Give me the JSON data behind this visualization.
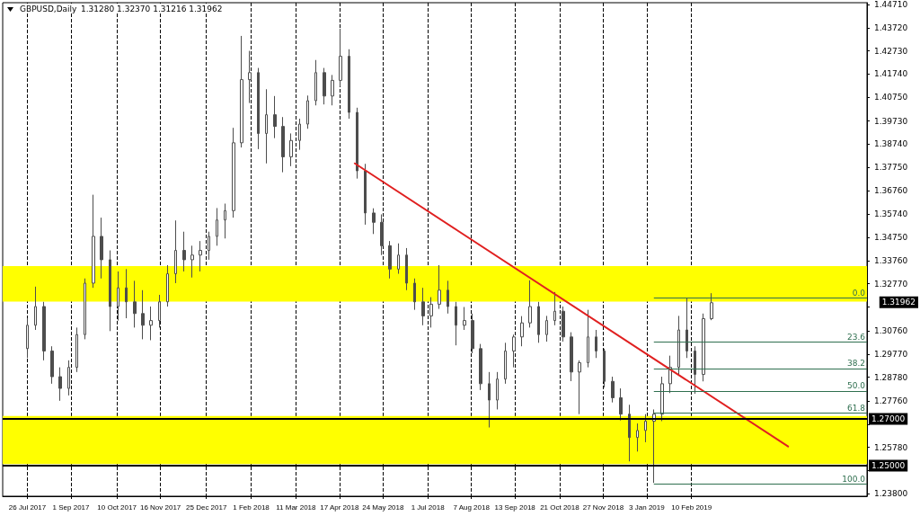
{
  "chart_data": {
    "type": "candlestick",
    "title": "GBPUSD,Daily",
    "subtitle": "1.31280 1.32370 1.31216 1.31962",
    "x": [
      "2017-07-26",
      "2017-08-02",
      "2017-08-09",
      "2017-08-16",
      "2017-08-23",
      "2017-08-30",
      "2017-09-06",
      "2017-09-13",
      "2017-09-20",
      "2017-09-27",
      "2017-10-04",
      "2017-10-11",
      "2017-10-18",
      "2017-10-25",
      "2017-11-01",
      "2017-11-08",
      "2017-11-15",
      "2017-11-22",
      "2017-11-29",
      "2017-12-06",
      "2017-12-13",
      "2017-12-20",
      "2017-12-27",
      "2018-01-03",
      "2018-01-10",
      "2018-01-17",
      "2018-01-24",
      "2018-01-31",
      "2018-02-07",
      "2018-02-14",
      "2018-02-21",
      "2018-02-28",
      "2018-03-07",
      "2018-03-14",
      "2018-03-21",
      "2018-03-28",
      "2018-04-04",
      "2018-04-11",
      "2018-04-18",
      "2018-04-25",
      "2018-05-02",
      "2018-05-09",
      "2018-05-16",
      "2018-05-23",
      "2018-05-30",
      "2018-06-06",
      "2018-06-13",
      "2018-06-20",
      "2018-06-27",
      "2018-07-04",
      "2018-07-11",
      "2018-07-18",
      "2018-07-25",
      "2018-08-01",
      "2018-08-08",
      "2018-08-15",
      "2018-08-22",
      "2018-08-29",
      "2018-09-05",
      "2018-09-12",
      "2018-09-19",
      "2018-09-26",
      "2018-10-03",
      "2018-10-10",
      "2018-10-17",
      "2018-10-24",
      "2018-10-31",
      "2018-11-07",
      "2018-11-14",
      "2018-11-21",
      "2018-11-28",
      "2018-12-05",
      "2018-12-12",
      "2018-12-19",
      "2018-12-26",
      "2019-01-02",
      "2019-01-09",
      "2019-01-16",
      "2019-01-23",
      "2019-01-30",
      "2019-02-06",
      "2019-02-13",
      "2019-02-20",
      "2019-02-27"
    ],
    "ohlc": [
      [
        1.3,
        1.313,
        1.296,
        1.31
      ],
      [
        1.31,
        1.3265,
        1.308,
        1.318
      ],
      [
        1.318,
        1.32,
        1.295,
        1.299
      ],
      [
        1.299,
        1.301,
        1.285,
        1.288
      ],
      [
        1.288,
        1.292,
        1.2777,
        1.283
      ],
      [
        1.283,
        1.295,
        1.28,
        1.292
      ],
      [
        1.292,
        1.309,
        1.29,
        1.306
      ],
      [
        1.306,
        1.33,
        1.304,
        1.328
      ],
      [
        1.328,
        1.3658,
        1.326,
        1.348
      ],
      [
        1.348,
        1.356,
        1.33,
        1.338
      ],
      [
        1.338,
        1.342,
        1.3075,
        1.318
      ],
      [
        1.318,
        1.333,
        1.312,
        1.326
      ],
      [
        1.326,
        1.334,
        1.313,
        1.32
      ],
      [
        1.32,
        1.329,
        1.309,
        1.315
      ],
      [
        1.315,
        1.325,
        1.304,
        1.31
      ],
      [
        1.31,
        1.318,
        1.3036,
        1.312
      ],
      [
        1.312,
        1.323,
        1.309,
        1.32
      ],
      [
        1.32,
        1.3357,
        1.318,
        1.332
      ],
      [
        1.332,
        1.3548,
        1.328,
        1.342
      ],
      [
        1.342,
        1.35,
        1.333,
        1.338
      ],
      [
        1.338,
        1.344,
        1.3304,
        1.34
      ],
      [
        1.34,
        1.346,
        1.333,
        1.342
      ],
      [
        1.342,
        1.35,
        1.338,
        1.348
      ],
      [
        1.348,
        1.3601,
        1.344,
        1.355
      ],
      [
        1.355,
        1.362,
        1.3471,
        1.359
      ],
      [
        1.359,
        1.3944,
        1.356,
        1.388
      ],
      [
        1.388,
        1.4337,
        1.386,
        1.415
      ],
      [
        1.415,
        1.4273,
        1.405,
        1.418
      ],
      [
        1.418,
        1.42,
        1.3853,
        1.392
      ],
      [
        1.392,
        1.4109,
        1.3792,
        1.4
      ],
      [
        1.4,
        1.408,
        1.39,
        1.395
      ],
      [
        1.395,
        1.399,
        1.3754,
        1.382
      ],
      [
        1.382,
        1.392,
        1.378,
        1.389
      ],
      [
        1.389,
        1.3983,
        1.385,
        1.396
      ],
      [
        1.396,
        1.4082,
        1.394,
        1.406
      ],
      [
        1.406,
        1.4234,
        1.404,
        1.418
      ],
      [
        1.418,
        1.42,
        1.4044,
        1.408
      ],
      [
        1.408,
        1.417,
        1.404,
        1.4147
      ],
      [
        1.4147,
        1.4368,
        1.412,
        1.425
      ],
      [
        1.425,
        1.428,
        1.3983,
        1.401
      ],
      [
        1.401,
        1.403,
        1.3727,
        1.376
      ],
      [
        1.376,
        1.379,
        1.353,
        1.358
      ],
      [
        1.358,
        1.36,
        1.349,
        1.354
      ],
      [
        1.354,
        1.3574,
        1.34,
        1.344
      ],
      [
        1.344,
        1.346,
        1.33,
        1.334
      ],
      [
        1.334,
        1.345,
        1.332,
        1.34
      ],
      [
        1.34,
        1.343,
        1.325,
        1.328
      ],
      [
        1.328,
        1.33,
        1.3166,
        1.32
      ],
      [
        1.32,
        1.326,
        1.31,
        1.314
      ],
      [
        1.314,
        1.322,
        1.309,
        1.319
      ],
      [
        1.319,
        1.3357,
        1.317,
        1.325
      ],
      [
        1.325,
        1.329,
        1.315,
        1.318
      ],
      [
        1.318,
        1.32,
        1.3014,
        1.31
      ],
      [
        1.31,
        1.3178,
        1.308,
        1.312
      ],
      [
        1.312,
        1.315,
        1.298,
        1.3
      ],
      [
        1.3,
        1.302,
        1.2823,
        1.285
      ],
      [
        1.285,
        1.29,
        1.2663,
        1.278
      ],
      [
        1.278,
        1.29,
        1.274,
        1.287
      ],
      [
        1.287,
        1.3025,
        1.285,
        1.299
      ],
      [
        1.299,
        1.306,
        1.292,
        1.305
      ],
      [
        1.305,
        1.3139,
        1.301,
        1.311
      ],
      [
        1.311,
        1.3292,
        1.309,
        1.318
      ],
      [
        1.318,
        1.32,
        1.3025,
        1.306
      ],
      [
        1.306,
        1.314,
        1.303,
        1.312
      ],
      [
        1.312,
        1.3242,
        1.31,
        1.316
      ],
      [
        1.316,
        1.318,
        1.303,
        1.305
      ],
      [
        1.305,
        1.307,
        1.2861,
        1.29
      ],
      [
        1.29,
        1.295,
        1.272,
        1.294
      ],
      [
        1.294,
        1.3166,
        1.292,
        1.305
      ],
      [
        1.305,
        1.308,
        1.296,
        1.299
      ],
      [
        1.299,
        1.3,
        1.2834,
        1.286
      ],
      [
        1.286,
        1.288,
        1.277,
        1.279
      ],
      [
        1.279,
        1.283,
        1.2693,
        1.272
      ],
      [
        1.272,
        1.276,
        1.2518,
        1.262
      ],
      [
        1.262,
        1.268,
        1.256,
        1.265
      ],
      [
        1.265,
        1.272,
        1.26,
        1.269
      ],
      [
        1.269,
        1.274,
        1.2426,
        1.272
      ],
      [
        1.272,
        1.288,
        1.269,
        1.285
      ],
      [
        1.285,
        1.297,
        1.281,
        1.292
      ],
      [
        1.292,
        1.314,
        1.2884,
        1.308
      ],
      [
        1.308,
        1.3216,
        1.296,
        1.299
      ],
      [
        1.299,
        1.301,
        1.2807,
        1.289
      ],
      [
        1.289,
        1.315,
        1.286,
        1.3128
      ],
      [
        1.3128,
        1.3237,
        1.31216,
        1.31962
      ]
    ],
    "color": "#4d4d4d",
    "series": [
      {
        "type": "line",
        "color": "#e02020",
        "x": [
          "2018-04-30",
          "2019-05-03"
        ],
        "values": [
          1.3792,
          1.2582
        ]
      }
    ],
    "xlim": [
      "2017-07-05",
      "2019-07-09"
    ],
    "xticks": [
      {
        "value": "2017-07-26",
        "label": "26 Jul 2017"
      },
      {
        "value": "2017-09-01",
        "label": "1 Sep 2017"
      },
      {
        "value": "2017-10-10",
        "label": "10 Oct 2017"
      },
      {
        "value": "2017-11-16",
        "label": "16 Nov 2017"
      },
      {
        "value": "2017-12-25",
        "label": "25 Dec 2017"
      },
      {
        "value": "2018-02-01",
        "label": "1 Feb 2018"
      },
      {
        "value": "2018-03-11",
        "label": "11 Mar 2018"
      },
      {
        "value": "2018-04-17",
        "label": "17 Apr 2018"
      },
      {
        "value": "2018-05-24",
        "label": "24 May 2018"
      },
      {
        "value": "2018-07-01",
        "label": "1 Jul 2018"
      },
      {
        "value": "2018-08-07",
        "label": "7 Aug 2018"
      },
      {
        "value": "2018-09-13",
        "label": "13 Sep 2018"
      },
      {
        "value": "2018-10-21",
        "label": "21 Oct 2018"
      },
      {
        "value": "2018-11-27",
        "label": "27 Nov 2018"
      },
      {
        "value": "2019-01-03",
        "label": "3 Jan 2019"
      },
      {
        "value": "2019-02-10",
        "label": "10 Feb 2019"
      }
    ],
    "ylim": [
      1.2369,
      1.4479
    ],
    "yticks": [
      {
        "value": 1.4471,
        "label": "1.44710"
      },
      {
        "value": 1.4372,
        "label": "1.43720"
      },
      {
        "value": 1.4273,
        "label": "1.42730"
      },
      {
        "value": 1.4174,
        "label": "1.41740"
      },
      {
        "value": 1.4075,
        "label": "1.40750"
      },
      {
        "value": 1.3973,
        "label": "1.39730"
      },
      {
        "value": 1.3874,
        "label": "1.38740"
      },
      {
        "value": 1.3775,
        "label": "1.37750"
      },
      {
        "value": 1.3676,
        "label": "1.36760"
      },
      {
        "value": 1.3574,
        "label": "1.35740"
      },
      {
        "value": 1.3475,
        "label": "1.34750"
      },
      {
        "value": 1.3376,
        "label": "1.33760"
      },
      {
        "value": 1.3277,
        "label": "1.32770"
      },
      {
        "value": 1.3178,
        "label": null
      },
      {
        "value": 1.3076,
        "label": "1.30760"
      },
      {
        "value": 1.2977,
        "label": "1.29770"
      },
      {
        "value": 1.2878,
        "label": "1.28780"
      },
      {
        "value": 1.2776,
        "label": "1.27760"
      },
      {
        "value": 1.2677,
        "label": null
      },
      {
        "value": 1.2578,
        "label": "1.25780"
      },
      {
        "value": 1.2479,
        "label": null
      },
      {
        "value": 1.238,
        "label": "1.23800"
      }
    ],
    "bands": [
      {
        "axis": "y",
        "from": 1.3201,
        "to": 1.3353,
        "color": "#ffff00"
      },
      {
        "axis": "y",
        "from": 1.2506,
        "to": 1.2712,
        "color": "#ffff00"
      }
    ],
    "ref_lines": [
      {
        "axis": "y",
        "value": 1.27,
        "label": "1.27000",
        "color": "#000000"
      },
      {
        "axis": "y",
        "value": 1.25,
        "label": "1.25000",
        "color": "#000000"
      },
      {
        "axis": "y",
        "value": 1.3216,
        "color": "#2f6f4f"
      },
      {
        "axis": "y",
        "value": 1.3029,
        "color": "#2f6f4f"
      },
      {
        "axis": "y",
        "value": 1.2915,
        "color": "#2f6f4f"
      },
      {
        "axis": "y",
        "value": 1.2819,
        "color": "#2f6f4f"
      },
      {
        "axis": "y",
        "value": 1.2724,
        "color": "#2f6f4f"
      },
      {
        "axis": "y",
        "value": 1.2422,
        "color": "#2f6f4f"
      }
    ],
    "annotations": [
      "1.31962",
      {
        "text": "0.0",
        "x": "2019-07-09",
        "y": 1.3216
      },
      {
        "text": "23.6",
        "x": "2019-07-09",
        "y": 1.3029
      },
      {
        "text": "38.2",
        "x": "2019-07-09",
        "y": 1.2915
      },
      {
        "text": "50.0",
        "x": "2019-07-09",
        "y": 1.2819
      },
      {
        "text": "61.8",
        "x": "2019-07-09",
        "y": 1.2724
      },
      {
        "text": "100.0",
        "x": "2019-07-09",
        "y": 1.2422
      }
    ],
    "grid": "x",
    "marker": "none"
  }
}
